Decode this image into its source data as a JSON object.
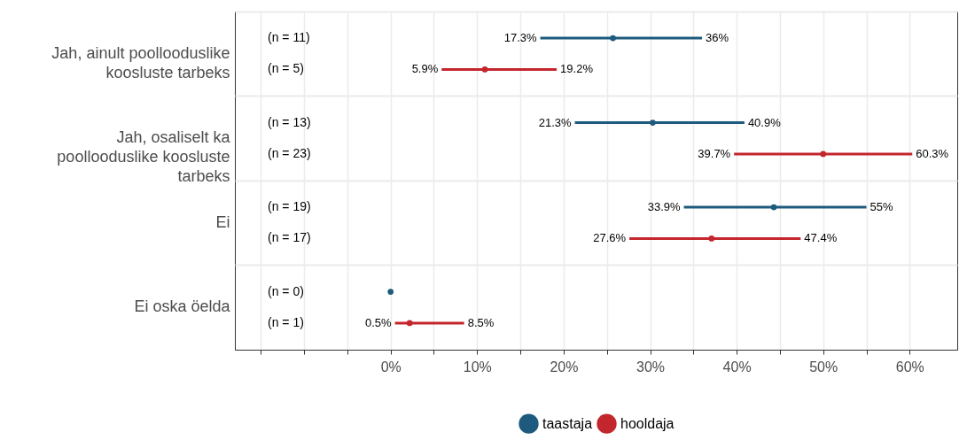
{
  "chart_data": {
    "type": "scatter",
    "categories": [
      "Jah, ainult poollooduslike koosluste tarbeks",
      "Jah, osaliselt ka poollooduslike koosluste tarbeks",
      "Ei",
      "Ei oska öelda"
    ],
    "series": [
      {
        "name": "taastaja",
        "color": "#1d5a7e",
        "values": [
          25.7,
          30.3,
          44.3,
          0
        ],
        "errors": [
          [
            17.3,
            36
          ],
          [
            21.3,
            40.9
          ],
          [
            33.9,
            55
          ],
          null
        ]
      },
      {
        "name": "hooldaja",
        "color": "#c3262c",
        "values": [
          10.9,
          50,
          37.1,
          2.2
        ],
        "errors": [
          [
            5.9,
            19.2
          ],
          [
            39.7,
            60.3
          ],
          [
            27.6,
            47.4
          ],
          [
            0.5,
            8.5
          ]
        ]
      }
    ],
    "orientation": "horizontal",
    "marker": "circle",
    "grid": true,
    "legend": "bottom",
    "xlim": [
      -18,
      65.5
    ],
    "xticks": [
      {
        "value": -15,
        "label": null
      },
      {
        "value": -10,
        "label": null
      },
      {
        "value": -5,
        "label": null
      },
      {
        "value": 0,
        "label": "0%"
      },
      {
        "value": 5,
        "label": null
      },
      {
        "value": 10,
        "label": "10%"
      },
      {
        "value": 15,
        "label": null
      },
      {
        "value": 20,
        "label": "20%"
      },
      {
        "value": 25,
        "label": null
      },
      {
        "value": 30,
        "label": "30%"
      },
      {
        "value": 35,
        "label": null
      },
      {
        "value": 40,
        "label": "40%"
      },
      {
        "value": 45,
        "label": null
      },
      {
        "value": 50,
        "label": "50%"
      },
      {
        "value": 55,
        "label": null
      },
      {
        "value": 60,
        "label": "60%"
      }
    ],
    "annotations": [
      "(n = 11)",
      "(n = 5)",
      "(n = 13)",
      "(n = 23)",
      "(n = 19)",
      "(n = 17)",
      "(n = 0)",
      "(n = 1)",
      "17.3%",
      "36%",
      "5.9%",
      "19.2%",
      "21.3%",
      "40.9%",
      "39.7%",
      "60.3%",
      "33.9%",
      "55%",
      "27.6%",
      "47.4%",
      "0.5%",
      "8.5%"
    ]
  }
}
